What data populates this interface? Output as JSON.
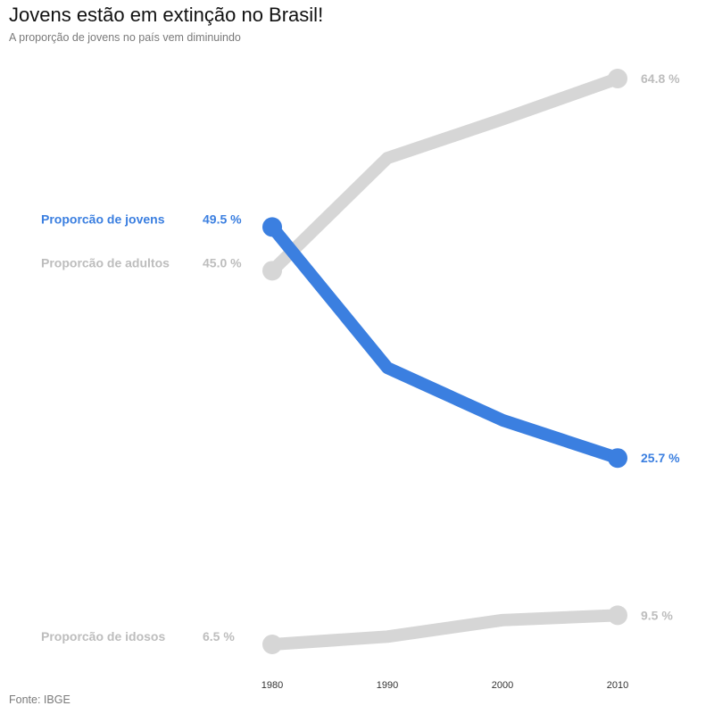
{
  "title": "Jovens estão em extinção no Brasil!",
  "subtitle": "A proporção de jovens no país vem diminuindo",
  "source": "Fonte: IBGE",
  "colors": {
    "highlight": "#3b7fe0",
    "muted": "#d6d6d6",
    "muted_text": "#bdbdbd",
    "axis_text": "#333333"
  },
  "chart_data": {
    "type": "line",
    "x": [
      1980,
      1990,
      2000,
      2010
    ],
    "x_tick_labels": [
      "1980",
      "1990",
      "2000",
      "2010"
    ],
    "grid": false,
    "legend": "none",
    "series": [
      {
        "name": "Proporcão de adultos",
        "values": [
          45.0,
          56.6,
          60.6,
          64.8
        ],
        "start_label": "45.0 %",
        "end_label": "64.8 %",
        "highlight": false
      },
      {
        "name": "Proporcão de jovens",
        "values": [
          49.5,
          35.0,
          29.6,
          25.7
        ],
        "start_label": "49.5 %",
        "end_label": "25.7 %",
        "highlight": true
      },
      {
        "name": "Proporcão de idosos",
        "values": [
          6.5,
          7.3,
          9.0,
          9.5
        ],
        "start_label": "6.5 %",
        "end_label": "9.5 %",
        "highlight": false
      }
    ]
  }
}
